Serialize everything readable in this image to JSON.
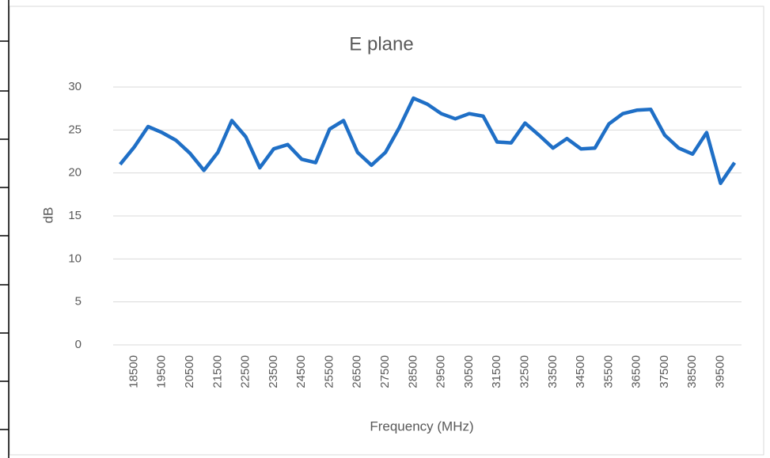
{
  "chart_data": {
    "type": "line",
    "title": "E plane",
    "x_label": "Frequency (MHz)",
    "y_label": "dB",
    "categories": [
      null,
      18500,
      null,
      19500,
      null,
      20500,
      null,
      21500,
      null,
      22500,
      null,
      23500,
      null,
      24500,
      null,
      25500,
      null,
      26500,
      null,
      27500,
      null,
      28500,
      null,
      29500,
      null,
      30500,
      null,
      31500,
      null,
      32500,
      null,
      33500,
      null,
      34500,
      null,
      35500,
      null,
      36500,
      null,
      37500,
      null,
      38500,
      null,
      39500,
      null
    ],
    "series": [
      {
        "name": "E plane",
        "color": "#1f6fc6",
        "values": [
          21.0,
          23.0,
          25.4,
          24.7,
          23.8,
          22.3,
          20.3,
          22.4,
          26.1,
          24.2,
          20.6,
          22.8,
          23.3,
          21.6,
          21.2,
          25.1,
          26.1,
          22.4,
          20.9,
          22.4,
          25.3,
          28.7,
          28.0,
          26.9,
          26.3,
          26.9,
          26.6,
          23.6,
          23.5,
          25.8,
          24.4,
          22.9,
          24.0,
          22.8,
          22.9,
          25.7,
          26.9,
          27.3,
          27.4,
          24.4,
          22.9,
          22.2,
          24.7,
          18.8,
          21.2
        ]
      }
    ],
    "ylim": [
      0,
      30
    ],
    "yticks": [
      0,
      5,
      10,
      15,
      20,
      25,
      30
    ],
    "grid": true
  }
}
